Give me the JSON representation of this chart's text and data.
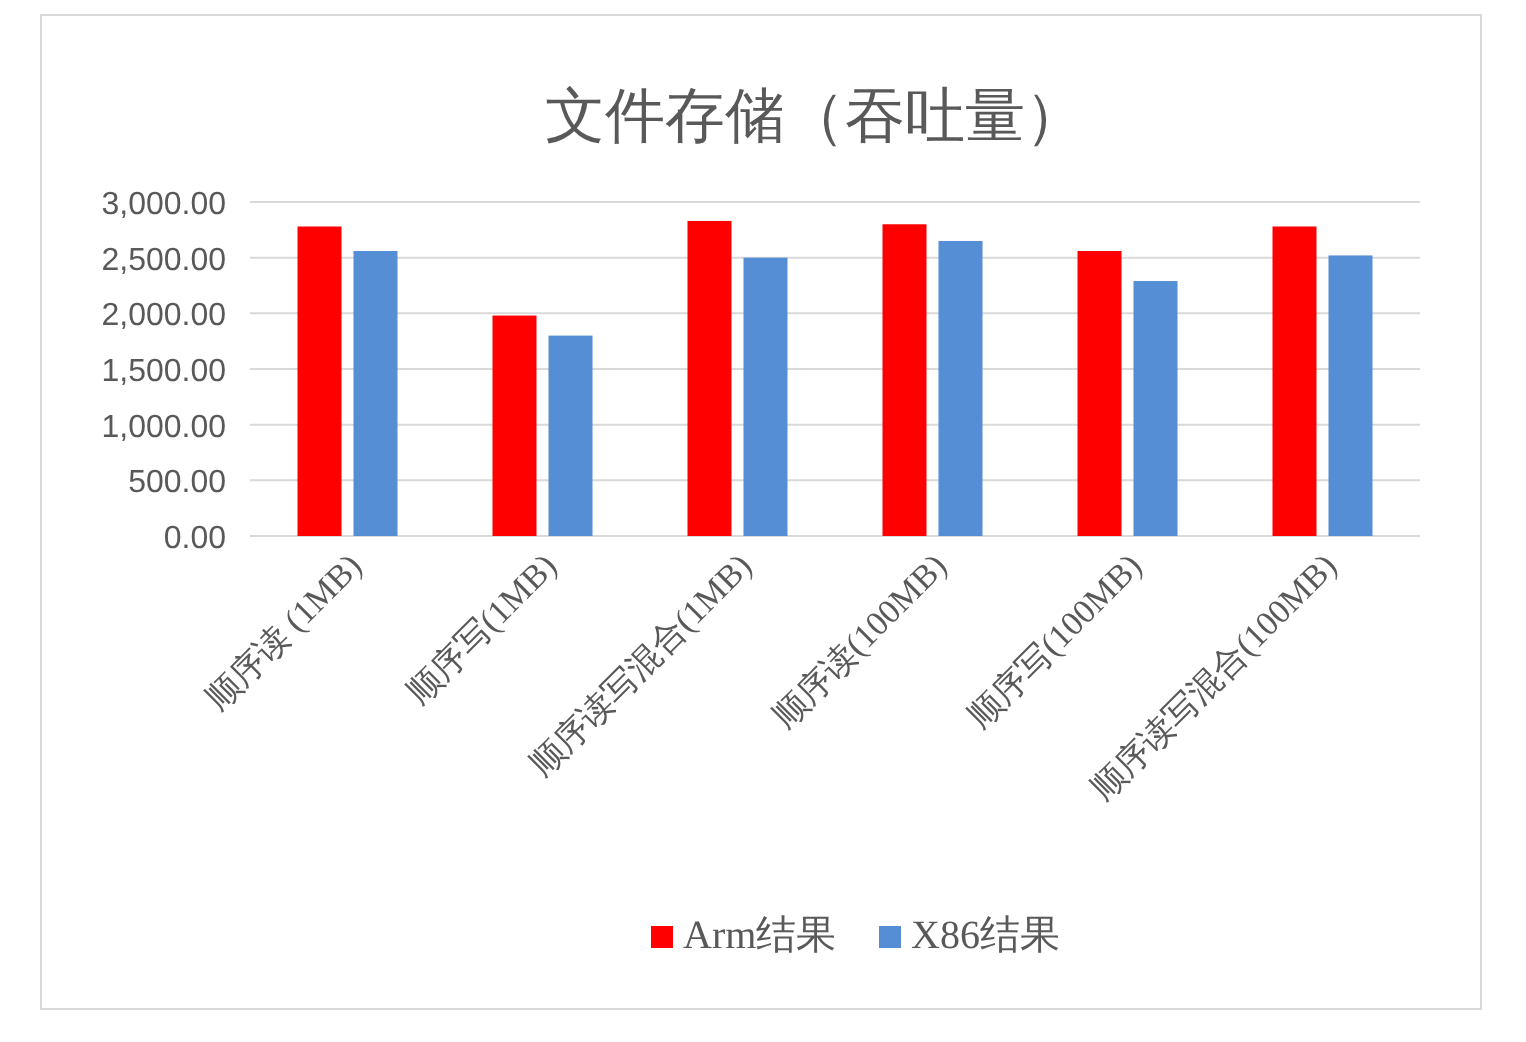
{
  "chart_data": {
    "type": "bar",
    "title": "文件存储（吞吐量）",
    "categories": [
      "顺序读 (1MB)",
      "顺序写(1MB)",
      "顺序读写混合(1MB)",
      "顺序读(100MB)",
      "顺序写(100MB)",
      "顺序读写混合(100MB)"
    ],
    "series": [
      {
        "name": "Arm结果",
        "color": "#ff0000",
        "values": [
          2780,
          1980,
          2830,
          2800,
          2560,
          2780
        ]
      },
      {
        "name": "X86结果",
        "color": "#558ed5",
        "values": [
          2560,
          1800,
          2500,
          2650,
          2290,
          2520
        ]
      }
    ],
    "ylim": [
      0,
      3000
    ],
    "yticks": [
      {
        "value": 0,
        "label": "0.00"
      },
      {
        "value": 500,
        "label": "500.00"
      },
      {
        "value": 1000,
        "label": "1,000.00"
      },
      {
        "value": 1500,
        "label": "1,500.00"
      },
      {
        "value": 2000,
        "label": "2,000.00"
      },
      {
        "value": 2500,
        "label": "2,500.00"
      },
      {
        "value": 3000,
        "label": "3,000.00"
      }
    ],
    "grid": "y",
    "legend": "bottom"
  }
}
